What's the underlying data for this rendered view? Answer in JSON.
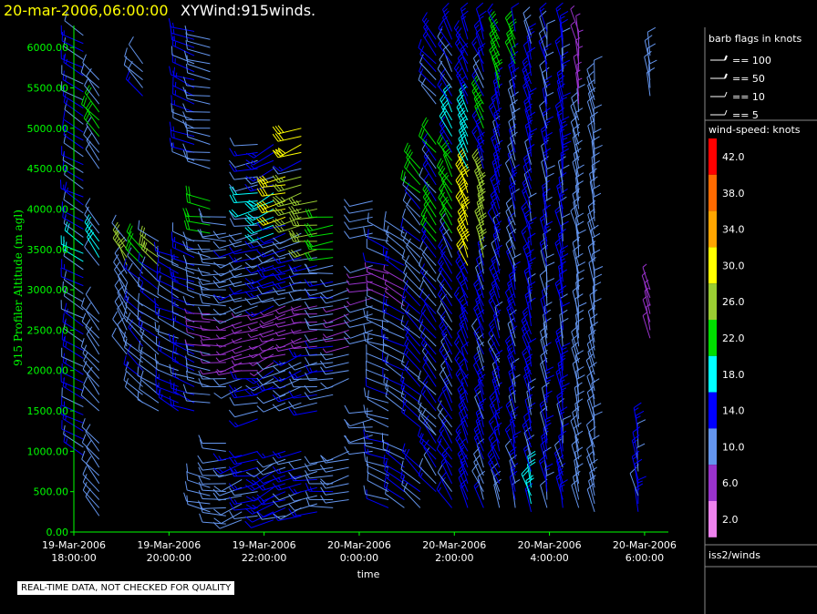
{
  "header": {
    "datetime": "20-mar-2006,06:00:00",
    "title": "XYWind:915winds."
  },
  "note": "REAL-TIME DATA, NOT CHECKED FOR QUALITY",
  "legend": {
    "flags_title": "barb flags in knots",
    "flags": [
      "== 100",
      "== 50",
      "== 10",
      "== 5"
    ],
    "speed_title": "wind-speed: knots",
    "speed_labels": [
      "42.0",
      "38.0",
      "34.0",
      "30.0",
      "26.0",
      "22.0",
      "18.0",
      "14.0",
      "10.0",
      "6.0",
      "2.0"
    ],
    "speed_colors": [
      "#ff0000",
      "#ff6a00",
      "#ffa500",
      "#ffff00",
      "#9acd32",
      "#00dd00",
      "#00ffff",
      "#0000ff",
      "#6495ed",
      "#9932cc",
      "#ee82ee"
    ],
    "source": "iss2/winds"
  },
  "chart_data": {
    "type": "scatter",
    "title": "XYWind:915winds.",
    "xlabel": "time",
    "ylabel": "915 Profiler Altitude (m agl)",
    "x_ticks": [
      [
        "19-Mar-2006",
        "18:00:00"
      ],
      [
        "19-Mar-2006",
        "20:00:00"
      ],
      [
        "19-Mar-2006",
        "22:00:00"
      ],
      [
        "20-Mar-2006",
        "0:00:00"
      ],
      [
        "20-Mar-2006",
        "2:00:00"
      ],
      [
        "20-Mar-2006",
        "4:00:00"
      ],
      [
        "20-Mar-2006",
        "6:00:00"
      ]
    ],
    "y_ticks": [
      "0.00",
      "500.00",
      "1000.00",
      "1500.00",
      "2000.00",
      "2500.00",
      "3000.00",
      "3500.00",
      "4000.00",
      "4500.00",
      "5000.00",
      "5500.00",
      "6000.00"
    ],
    "xlim": [
      "19-Mar-2006 18:00:00",
      "20-Mar-2006 06:30:00"
    ],
    "ylim": [
      0,
      6250
    ],
    "grid": false,
    "profiles": [
      {
        "time": "19-Mar-2006 18:05",
        "ranges": [
          [
            950,
            6200
          ]
        ],
        "dir": -60,
        "speed": 12,
        "accents": [
          [
            3300,
            3600,
            18
          ]
        ]
      },
      {
        "time": "19-Mar-2006 18:25",
        "ranges": [
          [
            200,
            1100
          ],
          [
            1500,
            2700
          ],
          [
            3300,
            3800
          ],
          [
            4500,
            5600
          ]
        ],
        "dir": -40,
        "speed": 10,
        "accents": [
          [
            4900,
            5200,
            22
          ],
          [
            3400,
            3600,
            18
          ]
        ]
      },
      {
        "time": "19-Mar-2006 19:00",
        "ranges": [
          [
            2200,
            3600
          ]
        ],
        "dir": -30,
        "speed": 10,
        "accents": [
          [
            3300,
            3550,
            26
          ]
        ]
      },
      {
        "time": "19-Mar-2006 19:20",
        "ranges": [
          [
            1600,
            2800
          ],
          [
            3000,
            3500
          ],
          [
            5400,
            5800
          ]
        ],
        "dir": -45,
        "speed": 12,
        "accents": [
          [
            3300,
            3550,
            22
          ]
        ]
      },
      {
        "time": "19-Mar-2006 19:40",
        "ranges": [
          [
            1500,
            3600
          ]
        ],
        "dir": -55,
        "speed": 11,
        "accents": [
          [
            3300,
            3550,
            26
          ]
        ]
      },
      {
        "time": "19-Mar-2006 20:05",
        "ranges": [
          [
            1500,
            3400
          ]
        ],
        "dir": -65,
        "speed": 12,
        "accents": []
      },
      {
        "time": "19-Mar-2006 20:25",
        "ranges": [
          [
            1500,
            3600
          ],
          [
            4600,
            6200
          ]
        ],
        "dir": -70,
        "speed": 13,
        "accents": [
          [
            3800,
            4000,
            26
          ]
        ]
      },
      {
        "time": "19-Mar-2006 20:45",
        "ranges": [
          [
            250,
            650
          ],
          [
            1600,
            4100
          ],
          [
            4500,
            6100
          ]
        ],
        "dir": -80,
        "speed": 10,
        "accents": [
          [
            3700,
            4100,
            22
          ],
          [
            2300,
            2700,
            6
          ]
        ]
      },
      {
        "time": "19-Mar-2006 21:05",
        "ranges": [
          [
            100,
            1100
          ],
          [
            1800,
            3900
          ]
        ],
        "dir": -90,
        "speed": 10,
        "accents": [
          [
            2000,
            2600,
            6
          ]
        ]
      },
      {
        "time": "19-Mar-2006 21:25",
        "ranges": [
          [
            150,
            1000
          ],
          [
            1800,
            3700
          ]
        ],
        "dir": -110,
        "speed": 11,
        "accents": [
          [
            2000,
            2600,
            6
          ]
        ]
      },
      {
        "time": "19-Mar-2006 21:45",
        "ranges": [
          [
            200,
            1000
          ],
          [
            1400,
            4800
          ]
        ],
        "dir": -100,
        "speed": 12,
        "accents": [
          [
            2000,
            2700,
            6
          ],
          [
            4000,
            4200,
            18
          ]
        ]
      },
      {
        "time": "19-Mar-2006 22:05",
        "ranges": [
          [
            150,
            900
          ],
          [
            1800,
            4800
          ]
        ],
        "dir": -115,
        "speed": 13,
        "accents": [
          [
            3700,
            4200,
            18
          ],
          [
            2100,
            2700,
            6
          ]
        ]
      },
      {
        "time": "19-Mar-2006 22:20",
        "ranges": [
          [
            200,
            1000
          ],
          [
            1600,
            4400
          ]
        ],
        "dir": -105,
        "speed": 12,
        "accents": [
          [
            3900,
            4400,
            30
          ],
          [
            2200,
            2800,
            6
          ]
        ]
      },
      {
        "time": "19-Mar-2006 22:40",
        "ranges": [
          [
            200,
            1000
          ],
          [
            1600,
            5000
          ]
        ],
        "dir": -110,
        "speed": 12,
        "accents": [
          [
            4700,
            5000,
            30
          ],
          [
            3800,
            4400,
            26
          ],
          [
            2300,
            2800,
            6
          ]
        ]
      },
      {
        "time": "19-Mar-2006 23:00",
        "ranges": [
          [
            250,
            900
          ],
          [
            1500,
            4100
          ]
        ],
        "dir": -100,
        "speed": 12,
        "accents": [
          [
            3500,
            4100,
            26
          ],
          [
            2300,
            2800,
            6
          ]
        ]
      },
      {
        "time": "19-Mar-2006 23:20",
        "ranges": [
          [
            300,
            900
          ],
          [
            1700,
            3900
          ]
        ],
        "dir": -95,
        "speed": 11,
        "accents": [
          [
            3400,
            3900,
            22
          ]
        ]
      },
      {
        "time": "19-Mar-2006 23:40",
        "ranges": [
          [
            400,
            1000
          ],
          [
            1900,
            3100
          ]
        ],
        "dir": -105,
        "speed": 10,
        "accents": [
          [
            2300,
            2800,
            6
          ]
        ]
      },
      {
        "time": "20-Mar-2006 00:10",
        "ranges": [
          [
            1000,
            1500
          ],
          [
            2400,
            3300
          ],
          [
            3700,
            4100
          ]
        ],
        "dir": -100,
        "speed": 10,
        "accents": [
          [
            2900,
            3200,
            6
          ]
        ]
      },
      {
        "time": "20-Mar-2006 00:30",
        "ranges": [
          [
            300,
            1100
          ],
          [
            1200,
            3700
          ]
        ],
        "dir": -70,
        "speed": 11,
        "accents": [
          [
            2900,
            3200,
            6
          ]
        ]
      },
      {
        "time": "20-Mar-2006 00:50",
        "ranges": [
          [
            300,
            1000
          ],
          [
            1500,
            3700
          ]
        ],
        "dir": -60,
        "speed": 12,
        "accents": [
          [
            2800,
            3100,
            6
          ]
        ]
      },
      {
        "time": "20-Mar-2006 01:10",
        "ranges": [
          [
            300,
            800
          ],
          [
            1300,
            4500
          ]
        ],
        "dir": -45,
        "speed": 12,
        "accents": [
          [
            4200,
            4500,
            22
          ],
          [
            3100,
            3500,
            10
          ]
        ]
      },
      {
        "time": "20-Mar-2006 01:30",
        "ranges": [
          [
            500,
            1200
          ],
          [
            1200,
            4800
          ],
          [
            5300,
            6100
          ]
        ],
        "dir": -40,
        "speed": 12,
        "accents": [
          [
            3600,
            4000,
            22
          ],
          [
            4700,
            4800,
            22
          ]
        ]
      },
      {
        "time": "20-Mar-2006 01:50",
        "ranges": [
          [
            300,
            6200
          ]
        ],
        "dir": -30,
        "speed": 13,
        "accents": [
          [
            3700,
            4600,
            22
          ],
          [
            4900,
            5200,
            18
          ]
        ]
      },
      {
        "time": "20-Mar-2006 02:10",
        "ranges": [
          [
            300,
            6200
          ]
        ],
        "dir": -25,
        "speed": 14,
        "accents": [
          [
            3300,
            4400,
            30
          ],
          [
            4500,
            5200,
            18
          ]
        ]
      },
      {
        "time": "20-Mar-2006 02:30",
        "ranges": [
          [
            300,
            6200
          ]
        ],
        "dir": -20,
        "speed": 13,
        "accents": [
          [
            3400,
            4400,
            26
          ],
          [
            5000,
            5300,
            22
          ]
        ]
      },
      {
        "time": "20-Mar-2006 02:50",
        "ranges": [
          [
            300,
            6200
          ]
        ],
        "dir": -20,
        "speed": 13,
        "accents": [
          [
            5500,
            6100,
            22
          ]
        ]
      },
      {
        "time": "20-Mar-2006 03:10",
        "ranges": [
          [
            300,
            6200
          ]
        ],
        "dir": -15,
        "speed": 12,
        "accents": [
          [
            5800,
            6100,
            22
          ]
        ]
      },
      {
        "time": "20-Mar-2006 03:30",
        "ranges": [
          [
            250,
            6200
          ]
        ],
        "dir": -15,
        "speed": 13,
        "accents": [
          [
            300,
            700,
            18
          ]
        ]
      },
      {
        "time": "20-Mar-2006 03:50",
        "ranges": [
          [
            300,
            6200
          ]
        ],
        "dir": -10,
        "speed": 12,
        "accents": []
      },
      {
        "time": "20-Mar-2006 04:10",
        "ranges": [
          [
            300,
            6200
          ]
        ],
        "dir": -10,
        "speed": 13,
        "accents": []
      },
      {
        "time": "20-Mar-2006 04:30",
        "ranges": [
          [
            300,
            6200
          ]
        ],
        "dir": -10,
        "speed": 10,
        "accents": [
          [
            5300,
            6200,
            6
          ]
        ]
      },
      {
        "time": "20-Mar-2006 04:50",
        "ranges": [
          [
            250,
            5600
          ]
        ],
        "dir": -10,
        "speed": 10,
        "accents": []
      },
      {
        "time": "20-Mar-2006 05:45",
        "ranges": [
          [
            250,
            1300
          ]
        ],
        "dir": -10,
        "speed": 13,
        "accents": []
      },
      {
        "time": "20-Mar-2006 06:00",
        "ranges": [
          [
            2400,
            3000
          ],
          [
            5400,
            5900
          ]
        ],
        "dir": -10,
        "speed": 10,
        "accents": [
          [
            2400,
            3000,
            6
          ]
        ]
      }
    ]
  }
}
